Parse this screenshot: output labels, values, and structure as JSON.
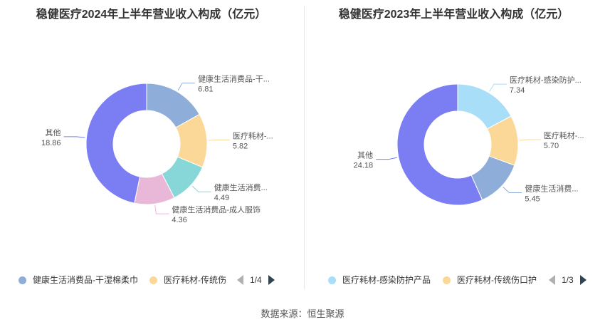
{
  "source_label": "数据来源：恒生聚源",
  "chart_data": [
    {
      "type": "pie",
      "title": "稳健医疗2024年上半年营业收入构成（亿元）",
      "slices": [
        {
          "label": "健康生活消费品-干...",
          "value": 6.81,
          "value_label": "6.81",
          "color": "#8eadd9"
        },
        {
          "label": "医疗耗材-...",
          "value": 5.82,
          "value_label": "5.82",
          "color": "#fcd898"
        },
        {
          "label": "健康生活消费...",
          "value": 4.49,
          "value_label": "4.49",
          "color": "#88d7d8"
        },
        {
          "label": "健康生活消费品-成人服饰",
          "value": 4.36,
          "value_label": "4.36",
          "color": "#e9b7d8"
        },
        {
          "label": "其他",
          "value": 18.86,
          "value_label": "18.86",
          "color": "#7a7ef2"
        }
      ],
      "legend": {
        "items": [
          {
            "label": "健康生活消费品-干湿棉柔巾",
            "color": "#8eadd9"
          },
          {
            "label": "医疗耗材-传统伤",
            "color": "#fcd898"
          }
        ],
        "page": "1/4"
      }
    },
    {
      "type": "pie",
      "title": "稳健医疗2023年上半年营业收入构成（亿元）",
      "slices": [
        {
          "label": "医疗耗材-感染防护...",
          "value": 7.34,
          "value_label": "7.34",
          "color": "#a9def8"
        },
        {
          "label": "医疗耗材-...",
          "value": 5.7,
          "value_label": "5.70",
          "color": "#fcd898"
        },
        {
          "label": "健康生活消费...",
          "value": 5.45,
          "value_label": "5.45",
          "color": "#8eadd9"
        },
        {
          "label": "其他",
          "value": 24.18,
          "value_label": "24.18",
          "color": "#7a7ef2"
        }
      ],
      "legend": {
        "items": [
          {
            "label": "医疗耗材-感染防护产品",
            "color": "#a9def8"
          },
          {
            "label": "医疗耗材-传统伤口护",
            "color": "#fcd898"
          }
        ],
        "page": "1/3"
      }
    }
  ]
}
